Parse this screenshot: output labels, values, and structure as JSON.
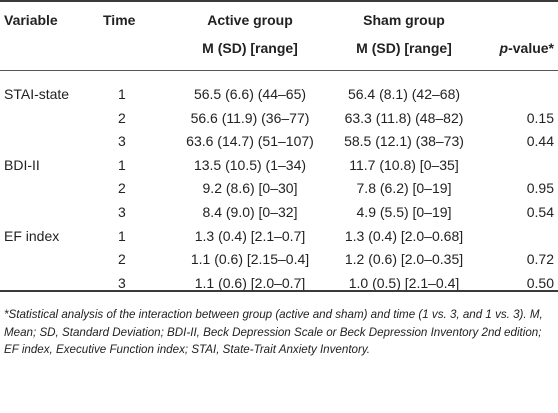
{
  "table": {
    "headers": {
      "variable": "Variable",
      "time": "Time",
      "active_group": "Active group",
      "active_sub": "M (SD) [range]",
      "sham_group": "Sham group",
      "sham_sub": "M (SD) [range]",
      "pvalue_p": "p",
      "pvalue_rest": "-value*"
    },
    "rows": [
      {
        "variable": "STAI-state",
        "time": "1",
        "active": "56.5 (6.6) (44–65)",
        "sham": "56.4 (8.1) (42–68)",
        "p": ""
      },
      {
        "variable": "",
        "time": "2",
        "active": "56.6 (11.9) (36–77)",
        "sham": "63.3 (11.8) (48–82)",
        "p": "0.15"
      },
      {
        "variable": "",
        "time": "3",
        "active": "63.6 (14.7) (51–107)",
        "sham": "58.5 (12.1) (38–73)",
        "p": "0.44"
      },
      {
        "variable": "BDI-II",
        "time": "1",
        "active": "13.5 (10.5) (1–34)",
        "sham": "11.7 (10.8) [0–35]",
        "p": ""
      },
      {
        "variable": "",
        "time": "2",
        "active": "9.2 (8.6) [0–30]",
        "sham": "7.8 (6.2) [0–19]",
        "p": "0.95"
      },
      {
        "variable": "",
        "time": "3",
        "active": "8.4 (9.0) [0–32]",
        "sham": "4.9 (5.5) [0–19]",
        "p": "0.54"
      },
      {
        "variable": "EF index",
        "time": "1",
        "active": "1.3 (0.4) [2.1–0.7]",
        "sham": "1.3 (0.4) [2.0–0.68]",
        "p": ""
      },
      {
        "variable": "",
        "time": "2",
        "active": "1.1 (0.6) [2.15–0.4]",
        "sham": "1.2 (0.6) [2.0–0.35]",
        "p": "0.72"
      },
      {
        "variable": "",
        "time": "3",
        "active": "1.1 (0.6) [2.0–0.7]",
        "sham": "1.0 (0.5) [2.1–0.4]",
        "p": "0.50"
      }
    ]
  },
  "footnote": "*Statistical analysis of the interaction between group (active and sham) and time (1 vs. 3, and 1 vs. 3). M, Mean; SD, Standard Deviation; BDI-II, Beck Depression Scale or Beck Depression Inventory 2nd edition; EF index, Executive Function index; STAI, State-Trait Anxiety Inventory."
}
